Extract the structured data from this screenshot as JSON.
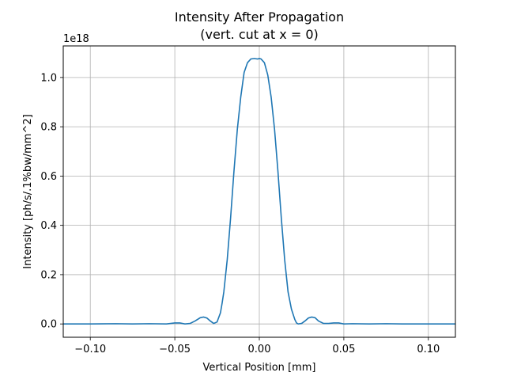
{
  "chart_data": {
    "type": "line",
    "title": "Intensity After Propagation",
    "subtitle": "(vert. cut at x = 0)",
    "xlabel": "Vertical Position [mm]",
    "ylabel": "Intensity [ph/s/.1%bw/mm^2]",
    "y_offset_label": "1e18",
    "xlim": [
      -0.116,
      0.116
    ],
    "ylim": [
      -0.054,
      1.128
    ],
    "xticks": [
      -0.1,
      -0.05,
      0.0,
      0.05,
      0.1
    ],
    "xtick_labels": [
      "−0.10",
      "−0.05",
      "0.00",
      "0.05",
      "0.10"
    ],
    "yticks": [
      0.0,
      0.2,
      0.4,
      0.6,
      0.8,
      1.0
    ],
    "ytick_labels": [
      "0.0",
      "0.2",
      "0.4",
      "0.6",
      "0.8",
      "1.0"
    ],
    "grid": true,
    "color": "#1f77b4",
    "series": [
      {
        "x": [
          -0.116,
          -0.1,
          -0.085,
          -0.075,
          -0.065,
          -0.055,
          -0.05,
          -0.047,
          -0.044,
          -0.041,
          -0.038,
          -0.035,
          -0.033,
          -0.031,
          -0.029,
          -0.027,
          -0.025,
          -0.023,
          -0.022,
          -0.021,
          -0.019,
          -0.017,
          -0.015,
          -0.013,
          -0.011,
          -0.009,
          -0.007,
          -0.005,
          -0.003,
          -0.001,
          0.0,
          0.001,
          0.003,
          0.005,
          0.007,
          0.009,
          0.011,
          0.013,
          0.015,
          0.017,
          0.019,
          0.021,
          0.022,
          0.023,
          0.025,
          0.027,
          0.029,
          0.031,
          0.033,
          0.035,
          0.038,
          0.041,
          0.044,
          0.047,
          0.05,
          0.055,
          0.065,
          0.075,
          0.085,
          0.1,
          0.116
        ],
        "y": [
          0.0,
          0.0,
          0.001,
          0.0,
          0.001,
          0.0,
          0.004,
          0.004,
          0.0,
          0.002,
          0.012,
          0.025,
          0.028,
          0.024,
          0.012,
          0.002,
          0.008,
          0.045,
          0.085,
          0.13,
          0.26,
          0.43,
          0.62,
          0.79,
          0.92,
          1.02,
          1.06,
          1.075,
          1.077,
          1.075,
          1.077,
          1.075,
          1.06,
          1.01,
          0.92,
          0.79,
          0.62,
          0.43,
          0.26,
          0.13,
          0.06,
          0.018,
          0.004,
          0.0,
          0.002,
          0.012,
          0.024,
          0.028,
          0.025,
          0.012,
          0.002,
          0.002,
          0.004,
          0.004,
          0.0,
          0.001,
          0.0,
          0.001,
          0.0,
          0.0,
          0.0
        ]
      }
    ]
  }
}
